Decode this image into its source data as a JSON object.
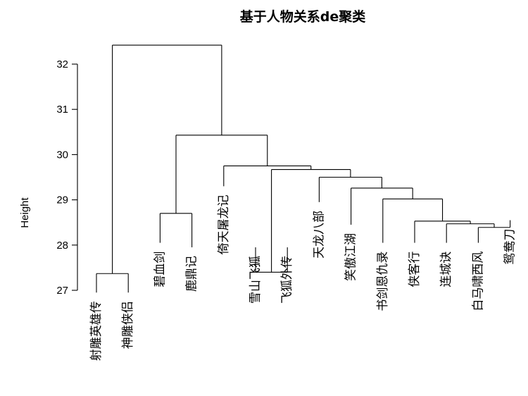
{
  "chart_data": {
    "type": "dendrogram",
    "title": "基于人物关系de聚类",
    "ylabel": "Height",
    "ylim": [
      27,
      32.5
    ],
    "yticks": [
      27,
      28,
      29,
      30,
      31,
      32
    ],
    "leaves": [
      "射雕英雄传",
      "神雕侠侣",
      "碧血剑",
      "鹿鼎记",
      "倚天屠龙记",
      "雪山飞狐",
      "飞狐外传",
      "天龙八部",
      "笑傲江湖",
      "书剑恩仇录",
      "侠客行",
      "连城诀",
      "白马啸西风",
      "鸳鸯刀"
    ],
    "leaf_heights": [
      26.95,
      26.95,
      28.05,
      27.95,
      29.3,
      27.95,
      27.95,
      28.95,
      28.45,
      28.05,
      28.05,
      28.05,
      28.05,
      28.55
    ],
    "merges": [
      {
        "id": "m1",
        "a": 0,
        "b": 1,
        "height": 27.37
      },
      {
        "id": "m2",
        "a": 5,
        "b": 6,
        "height": 27.4
      },
      {
        "id": "m3",
        "a": 2,
        "b": 3,
        "height": 28.7
      },
      {
        "id": "m4",
        "a": 12,
        "b": 13,
        "height": 28.39
      },
      {
        "id": "m5",
        "a": 11,
        "b": "m4",
        "height": 28.47
      },
      {
        "id": "m6",
        "a": 10,
        "b": "m5",
        "height": 28.53
      },
      {
        "id": "m7",
        "a": 9,
        "b": "m6",
        "height": 29.02
      },
      {
        "id": "m8",
        "a": 8,
        "b": "m7",
        "height": 29.26
      },
      {
        "id": "m9",
        "a": 7,
        "b": "m8",
        "height": 29.5
      },
      {
        "id": "m10",
        "a": "m2",
        "b": "m9",
        "height": 29.67
      },
      {
        "id": "m11",
        "a": 4,
        "b": "m10",
        "height": 29.75
      },
      {
        "id": "m12",
        "a": "m3",
        "b": "m11",
        "height": 30.43
      },
      {
        "id": "m13",
        "a": "m1",
        "b": "m12",
        "height": 32.42
      }
    ]
  }
}
